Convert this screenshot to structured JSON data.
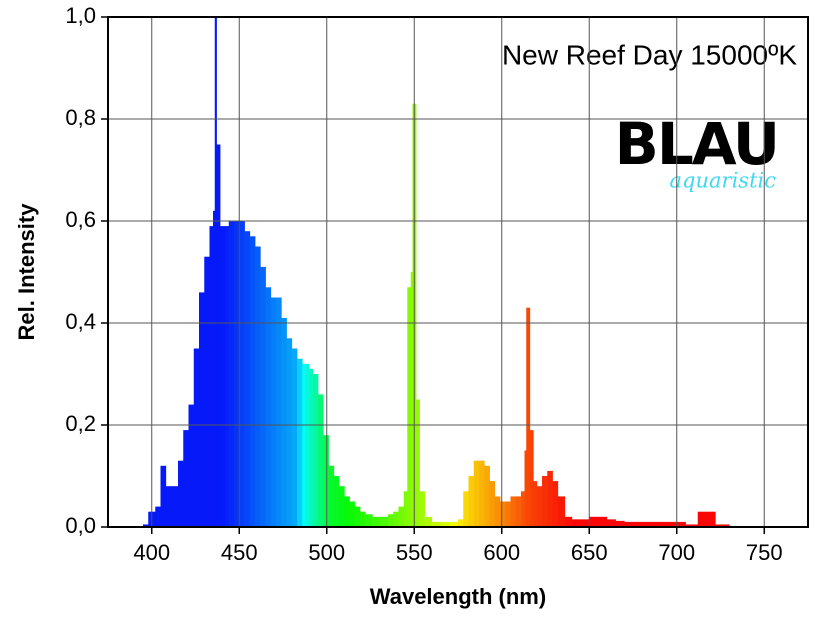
{
  "chart_data": {
    "type": "spectrum",
    "title": "New Reef Day 15000ºK",
    "logo": {
      "text": "BLAU",
      "subtext": "aquaristic"
    },
    "x_label": "Wavelength (nm)",
    "y_label": "Rel. Intensity",
    "x": [
      390,
      395,
      398,
      402,
      405,
      408,
      412,
      415,
      418,
      421,
      424,
      427,
      430,
      433,
      435,
      436,
      437,
      439,
      442,
      444,
      447,
      450,
      453,
      456,
      459,
      462,
      465,
      468,
      471,
      474,
      477,
      480,
      483,
      486,
      488,
      490,
      492,
      495,
      498,
      501,
      504,
      507,
      510,
      513,
      516,
      519,
      522,
      526,
      530,
      535,
      538,
      541,
      544,
      546,
      548,
      549,
      551,
      553,
      556,
      560,
      565,
      570,
      575,
      578,
      581,
      584,
      587,
      590,
      593,
      596,
      599,
      602,
      605,
      608,
      611,
      613,
      614,
      616,
      618,
      620,
      623,
      626,
      629,
      632,
      636,
      640,
      645,
      650,
      655,
      660,
      665,
      670,
      680,
      690,
      700,
      705,
      710,
      712,
      716,
      720,
      722,
      730,
      750
    ],
    "values": [
      0,
      0.005,
      0.03,
      0.04,
      0.12,
      0.08,
      0.08,
      0.13,
      0.19,
      0.24,
      0.35,
      0.46,
      0.53,
      0.59,
      0.62,
      1.0,
      0.75,
      0.59,
      0.59,
      0.6,
      0.6,
      0.6,
      0.58,
      0.57,
      0.55,
      0.51,
      0.47,
      0.45,
      0.45,
      0.41,
      0.37,
      0.35,
      0.33,
      0.32,
      0.32,
      0.31,
      0.3,
      0.26,
      0.18,
      0.12,
      0.1,
      0.08,
      0.06,
      0.05,
      0.04,
      0.03,
      0.025,
      0.02,
      0.02,
      0.025,
      0.03,
      0.04,
      0.07,
      0.47,
      0.5,
      0.83,
      0.25,
      0.07,
      0.02,
      0.01,
      0.01,
      0.01,
      0.015,
      0.07,
      0.1,
      0.13,
      0.13,
      0.12,
      0.09,
      0.06,
      0.05,
      0.05,
      0.06,
      0.06,
      0.07,
      0.15,
      0.43,
      0.19,
      0.09,
      0.08,
      0.1,
      0.11,
      0.09,
      0.06,
      0.02,
      0.015,
      0.015,
      0.02,
      0.02,
      0.015,
      0.012,
      0.01,
      0.01,
      0.01,
      0.01,
      0.005,
      0.005,
      0.03,
      0.03,
      0.03,
      0.005,
      0.002,
      0
    ],
    "xlim": [
      375,
      775
    ],
    "ylim": [
      0,
      1
    ],
    "xticks": [
      400,
      450,
      500,
      550,
      600,
      650,
      700,
      750
    ],
    "yticks": [
      {
        "value": 0,
        "label": "0,0"
      },
      {
        "value": 0.2,
        "label": "0,2"
      },
      {
        "value": 0.4,
        "label": "0,4"
      },
      {
        "value": 0.6,
        "label": "0,6"
      },
      {
        "value": 0.8,
        "label": "0,8"
      },
      {
        "value": 1,
        "label": "1,0"
      }
    ],
    "grid": true
  }
}
